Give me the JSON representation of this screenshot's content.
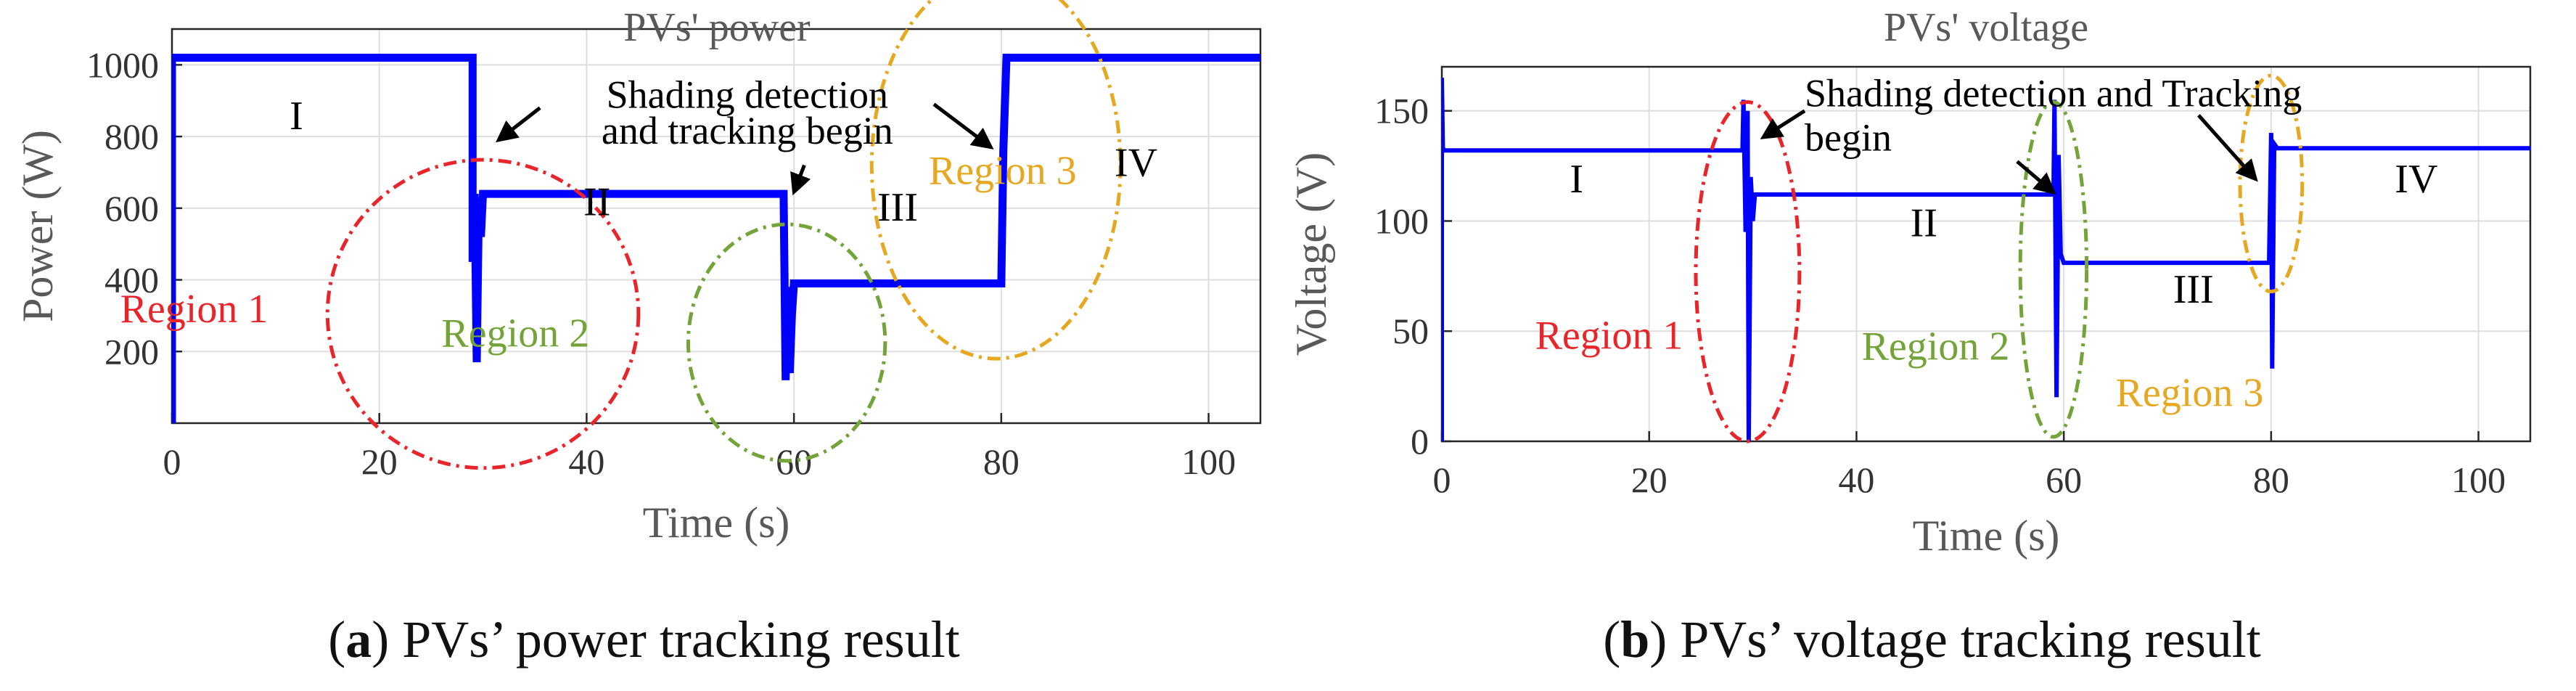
{
  "chart_data": [
    {
      "type": "line",
      "title": "PVs' power",
      "xlabel": "Time (s)",
      "ylabel": "Power (W)",
      "xlim": [
        0,
        105
      ],
      "ylim": [
        0,
        1100
      ],
      "x_ticks": [
        0,
        20,
        40,
        60,
        80,
        100
      ],
      "y_ticks": [
        200,
        400,
        600,
        800,
        1000
      ],
      "series": [
        {
          "name": "PV power",
          "color": "#0000ff",
          "x": [
            0,
            0,
            0.1,
            29,
            29,
            29.2,
            29.4,
            29.6,
            29.8,
            30,
            30.2,
            59,
            59.2,
            59.4,
            59.6,
            59.8,
            60,
            80,
            80.2,
            80.5,
            81,
            105
          ],
          "y": [
            0,
            1020,
            1020,
            1020,
            450,
            640,
            170,
            610,
            520,
            640,
            640,
            640,
            120,
            380,
            140,
            300,
            390,
            390,
            760,
            1020,
            1020,
            1020
          ]
        }
      ],
      "region_numerals": [
        "I",
        "II",
        "III",
        "IV"
      ],
      "annotations": [
        {
          "line1": "Shading detection",
          "line2": "and tracking begin"
        }
      ],
      "regions": [
        {
          "label": "Region 1",
          "color": "#e8252b"
        },
        {
          "label": "Region 2",
          "color": "#74a33a"
        },
        {
          "label": "Region 3",
          "color": "#e6a721"
        }
      ],
      "caption": {
        "prefix": "(",
        "bold": "a",
        "text": ") PVs’ power tracking result"
      }
    },
    {
      "type": "line",
      "title": "PVs' voltage",
      "xlabel": "Time (s)",
      "ylabel": "Voltage (V)",
      "xlim": [
        0,
        105
      ],
      "ylim": [
        0,
        170
      ],
      "x_ticks": [
        0,
        20,
        40,
        60,
        80,
        100
      ],
      "y_ticks": [
        0,
        50,
        100,
        150
      ],
      "series": [
        {
          "name": "PV voltage",
          "color": "#0000ff",
          "x": [
            0,
            0,
            0.1,
            0.3,
            29,
            29.1,
            29.3,
            29.5,
            29.6,
            29.8,
            30,
            30.2,
            30.5,
            59,
            59.1,
            59.3,
            59.5,
            59.7,
            60,
            79.8,
            80,
            80.1,
            80.3,
            80.6,
            105
          ],
          "y": [
            0,
            165,
            133,
            132,
            132,
            155,
            95,
            150,
            0,
            120,
            100,
            112,
            112,
            112,
            155,
            20,
            130,
            85,
            81,
            81,
            140,
            33,
            135,
            133,
            133
          ]
        }
      ],
      "region_numerals": [
        "I",
        "II",
        "III",
        "IV"
      ],
      "annotations": [
        {
          "line1": "Shading detection and Tracking",
          "line2": "begin"
        }
      ],
      "regions": [
        {
          "label": "Region 1",
          "color": "#e8252b"
        },
        {
          "label": "Region 2",
          "color": "#74a33a"
        },
        {
          "label": "Region 3",
          "color": "#e6a721"
        }
      ],
      "caption": {
        "prefix": "(",
        "bold": "b",
        "text": ") PVs’ voltage tracking result"
      }
    }
  ]
}
